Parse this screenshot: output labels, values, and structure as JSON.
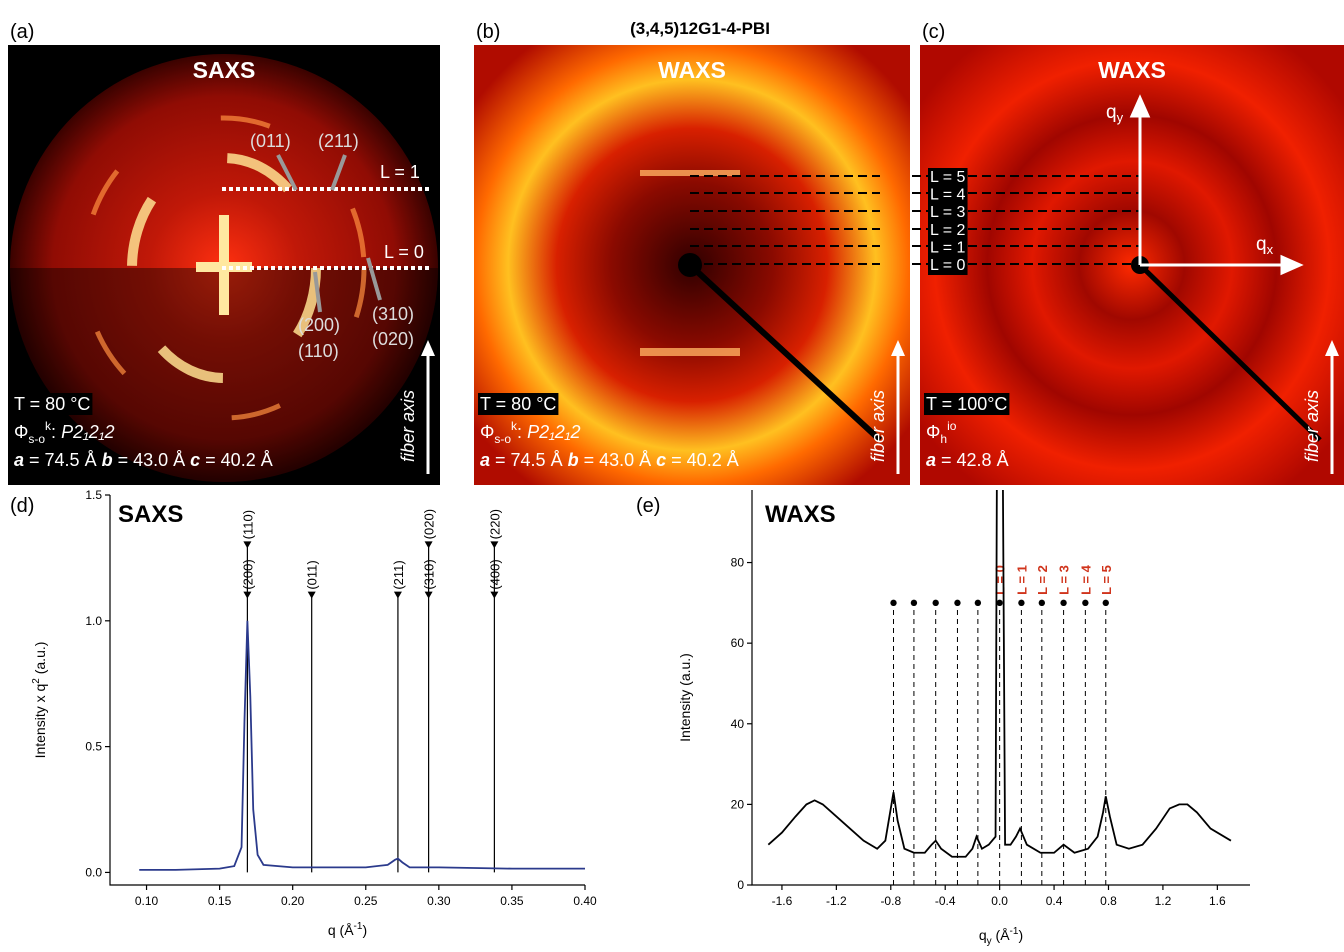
{
  "figure_title": "(3,4,5)12G1-4-PBI",
  "panel_a": {
    "label": "(a)",
    "technique": "SAXS",
    "reflections": [
      "(011)",
      "(211)",
      "(200)",
      "(110)",
      "(310)",
      "(020)"
    ],
    "layer_lines": [
      "L = 1",
      "L = 0"
    ],
    "temperature": "T = 80 °C",
    "phase": {
      "symbol": "Φ",
      "sub": "s-o",
      "sup": "k",
      "sep": ": ",
      "group": "P2₁2₁2"
    },
    "cell": [
      {
        "axis": "a",
        "value": " = 74.5 Å "
      },
      {
        "axis": "b",
        "value": " = 43.0 Å "
      },
      {
        "axis": "c",
        "value": " = 40.2 Å"
      }
    ],
    "fiber_axis": "fiber axis"
  },
  "panel_b": {
    "label": "(b)",
    "technique": "WAXS",
    "temperature": "T = 80 °C",
    "phase": {
      "symbol": "Φ",
      "sub": "s-o",
      "sup": "k",
      "sep": ": ",
      "group": "P2₁2₁2"
    },
    "cell": [
      {
        "axis": "a",
        "value": " = 74.5 Å "
      },
      {
        "axis": "b",
        "value": " = 43.0 Å "
      },
      {
        "axis": "c",
        "value": " = 40.2 Å"
      }
    ],
    "fiber_axis": "fiber axis"
  },
  "panel_c": {
    "label": "(c)",
    "technique": "WAXS",
    "qy": {
      "main": "q",
      "sub": "y"
    },
    "qx": {
      "main": "q",
      "sub": "x"
    },
    "layer_lines": [
      "L = 5",
      "L = 4",
      "L = 3",
      "L = 2",
      "L = 1",
      "L = 0"
    ],
    "temperature": "T = 100°C",
    "phase": {
      "symbol": "Φ",
      "sub": "h",
      "sup": "io"
    },
    "cell": [
      {
        "axis": "a",
        "value": " = 42.8 Å"
      }
    ],
    "fiber_axis": "fiber axis"
  },
  "chart_data": [
    {
      "type": "line",
      "panel_label": "(d)",
      "title": "SAXS",
      "x_label": {
        "main": "q (Å",
        "sup": "-1",
        "unit": ")"
      },
      "y_label": {
        "main": "Intensity x q",
        "sup": "2",
        "unit": " (a.u.)"
      },
      "x": [
        0.095,
        0.12,
        0.15,
        0.16,
        0.165,
        0.167,
        0.169,
        0.171,
        0.173,
        0.176,
        0.18,
        0.2,
        0.25,
        0.265,
        0.27,
        0.272,
        0.275,
        0.28,
        0.3,
        0.35,
        0.4
      ],
      "series": [
        {
          "color": "#2b3a8c",
          "values": [
            0.01,
            0.01,
            0.015,
            0.025,
            0.1,
            0.6,
            1.0,
            0.7,
            0.25,
            0.07,
            0.03,
            0.02,
            0.02,
            0.03,
            0.05,
            0.055,
            0.04,
            0.02,
            0.02,
            0.015,
            0.015
          ]
        }
      ],
      "xlim": [
        0.075,
        0.4
      ],
      "ylim": [
        -0.05,
        1.5
      ],
      "xticks": [
        {
          "value": 0.1,
          "label": "0.10"
        },
        0.15,
        {
          "value": 0.2,
          "label": "0.20"
        },
        0.25,
        {
          "value": 0.3,
          "label": "0.30"
        },
        0.35,
        {
          "value": 0.4,
          "label": "0.40"
        }
      ],
      "yticks": [
        {
          "value": 0,
          "label": "0.0"
        },
        0.5,
        {
          "value": 1,
          "label": "1.0"
        },
        1.5
      ],
      "reflections": [
        {
          "q": 0.169,
          "levels": [
            1.1,
            1.3
          ],
          "labels": [
            "(200)",
            "(110)"
          ]
        },
        {
          "q": 0.213,
          "levels": [
            1.1
          ],
          "labels": [
            "(011)"
          ]
        },
        {
          "q": 0.272,
          "levels": [
            1.1
          ],
          "labels": [
            "(211)"
          ]
        },
        {
          "q": 0.293,
          "levels": [
            1.1,
            1.3
          ],
          "labels": [
            "(310)",
            "(020)"
          ]
        },
        {
          "q": 0.338,
          "levels": [
            1.1,
            1.3
          ],
          "labels": [
            "(400)",
            "(220)"
          ]
        }
      ]
    },
    {
      "type": "line",
      "panel_label": "(e)",
      "title": "WAXS",
      "x_label": {
        "main": "q",
        "sub": "y",
        "unit": " (Å",
        "sup": "-1",
        "end": ")"
      },
      "y_label": {
        "main": "Intensity (a.u.)"
      },
      "x": [
        -1.7,
        -1.6,
        -1.5,
        -1.42,
        -1.36,
        -1.3,
        -1.2,
        -1.1,
        -1.0,
        -0.9,
        -0.84,
        -0.8,
        -0.78,
        -0.75,
        -0.7,
        -0.63,
        -0.55,
        -0.5,
        -0.47,
        -0.43,
        -0.35,
        -0.25,
        -0.2,
        -0.17,
        -0.13,
        -0.08,
        -0.03,
        -0.015,
        0.015,
        0.04,
        0.08,
        0.12,
        0.15,
        0.2,
        0.3,
        0.4,
        0.47,
        0.55,
        0.65,
        0.72,
        0.76,
        0.78,
        0.81,
        0.86,
        0.95,
        1.05,
        1.15,
        1.25,
        1.32,
        1.38,
        1.45,
        1.55,
        1.7
      ],
      "series": [
        {
          "color": "#000000",
          "values": [
            10,
            13,
            17,
            20,
            21,
            20,
            17,
            14,
            11,
            9,
            11,
            19,
            23,
            16,
            9,
            8,
            8,
            10,
            11,
            9,
            7,
            7,
            9,
            12,
            9,
            10,
            12,
            150,
            150,
            10,
            10,
            12,
            14,
            10,
            8,
            8,
            10,
            8,
            9,
            12,
            18,
            22,
            17,
            10,
            9,
            10,
            14,
            19,
            20,
            20,
            18,
            14,
            11
          ]
        }
      ],
      "xlim": [
        -1.82,
        1.84
      ],
      "ylim": [
        0,
        98
      ],
      "xticks": [
        -1.6,
        -1.2,
        -0.8,
        -0.4,
        {
          "value": 0,
          "label": "0.0"
        },
        0.4,
        0.8,
        1.2,
        1.6
      ],
      "yticks": [
        0,
        20,
        40,
        60,
        80
      ],
      "layer_lines": {
        "x": [
          -0.78,
          -0.63,
          -0.47,
          -0.31,
          -0.16,
          0,
          0.16,
          0.31,
          0.47,
          0.63,
          0.78
        ],
        "level": 70,
        "labels": [
          "L = 0",
          "L = 1",
          "L = 2",
          "L = 3",
          "L = 4",
          "L = 5"
        ],
        "label_color": "#d0341c"
      }
    }
  ]
}
